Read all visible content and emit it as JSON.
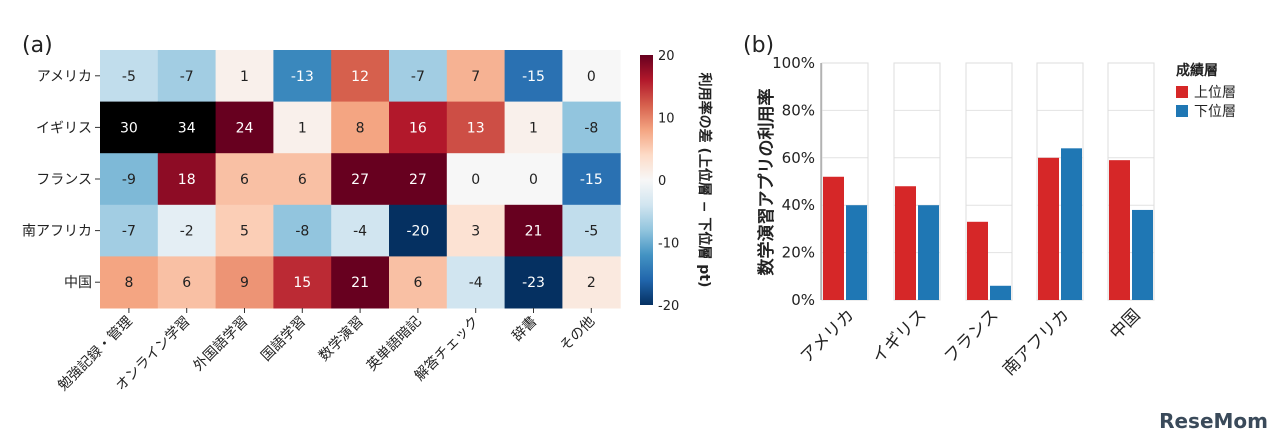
{
  "chart_data": [
    {
      "type": "heatmap",
      "panel_label": "(a)",
      "rows": [
        "アメリカ",
        "イギリス",
        "フランス",
        "南アフリカ",
        "中国"
      ],
      "columns": [
        "勉強記録・管理",
        "オンライン学習",
        "外国語学習",
        "国語学習",
        "数学演習",
        "英単語暗記",
        "解答チェック",
        "辞書",
        "その他"
      ],
      "values": [
        [
          -5,
          -7,
          1,
          -13,
          12,
          -7,
          7,
          -15,
          0
        ],
        [
          30,
          34,
          24,
          1,
          8,
          16,
          13,
          1,
          -8
        ],
        [
          -9,
          18,
          6,
          6,
          27,
          27,
          0,
          0,
          -15
        ],
        [
          -7,
          -2,
          5,
          -8,
          -4,
          -20,
          3,
          21,
          -5
        ],
        [
          8,
          6,
          9,
          15,
          21,
          6,
          -4,
          -23,
          2
        ]
      ],
      "colorbar": {
        "label": "利用率の差 (上位層 − 下位層 pt)",
        "range": [
          -20,
          20
        ],
        "ticks": [
          "20",
          "10",
          "0",
          "-10",
          "-20"
        ],
        "colormap": "RdBu_r"
      }
    },
    {
      "type": "bar",
      "panel_label": "(b)",
      "categories": [
        "アメリカ",
        "イギリス",
        "フランス",
        "南アフリカ",
        "中国"
      ],
      "series": [
        {
          "name": "上位層",
          "values": [
            52,
            48,
            33,
            60,
            59
          ],
          "color": "#d62728"
        },
        {
          "name": "下位層",
          "values": [
            40,
            40,
            6,
            64,
            38
          ],
          "color": "#1f77b4"
        }
      ],
      "ylabel": "数学演習アプリの利用率",
      "ylim": [
        0,
        100
      ],
      "yticks": [
        "0%",
        "20%",
        "40%",
        "60%",
        "80%",
        "100%"
      ],
      "legend": {
        "title": "成績層",
        "placement": "right"
      },
      "grid": true
    }
  ],
  "watermark": "ReseMom"
}
